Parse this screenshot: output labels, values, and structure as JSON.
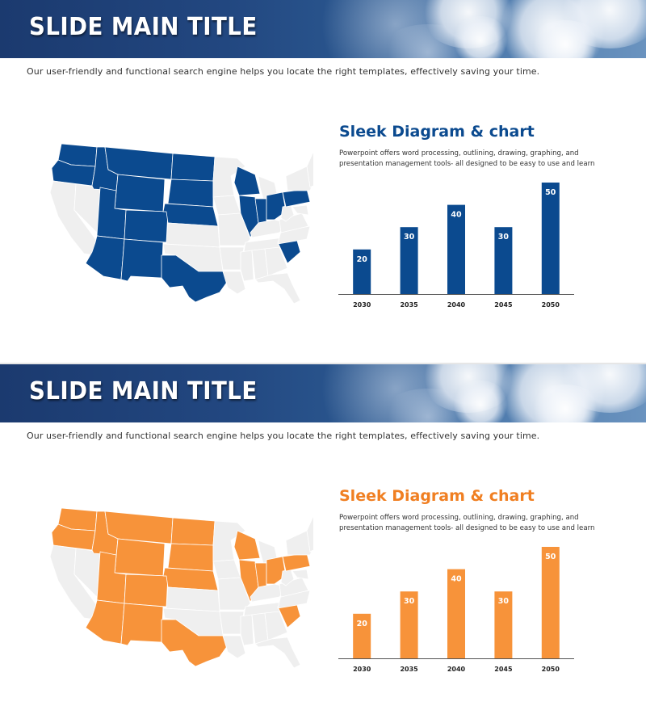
{
  "slides": [
    {
      "title": "SLIDE MAIN TITLE",
      "subtitle": "Our user-friendly and functional search engine helps you locate the right templates, effectively  saving your time.",
      "heading": "Sleek Diagram & chart",
      "body": "Powerpoint offers word processing, outlining, drawing, graphing, and presentation management tools- all designed to be easy to use and learn",
      "accent_color": "#0b4a8f",
      "map_base_color": "#efefef",
      "highlighted_states": [
        "Washington",
        "Oregon",
        "Idaho",
        "Montana",
        "Wyoming",
        "North Dakota",
        "South Dakota",
        "Nebraska",
        "Colorado",
        "Utah",
        "Arizona",
        "New Mexico",
        "Texas",
        "Wisconsin",
        "Illinois",
        "Indiana",
        "Ohio",
        "Pennsylvania",
        "South Carolina"
      ]
    },
    {
      "title": "SLIDE MAIN TITLE",
      "subtitle": "Our user-friendly and functional search engine helps you locate the right templates, effectively saving your time.",
      "heading": "Sleek Diagram & chart",
      "body": "Powerpoint offers word processing, outlining, drawing, graphing, and presentation management tools- all designed to be easy to use and learn",
      "accent_color": "#f7933a",
      "heading_color": "#f07f22",
      "map_base_color": "#efefef",
      "highlighted_states": [
        "Washington",
        "Oregon",
        "Idaho",
        "Montana",
        "Wyoming",
        "North Dakota",
        "South Dakota",
        "Nebraska",
        "Colorado",
        "Utah",
        "Arizona",
        "New Mexico",
        "Texas",
        "Wisconsin",
        "Illinois",
        "Indiana",
        "Ohio",
        "Pennsylvania",
        "South Carolina"
      ]
    }
  ],
  "chart_data": [
    {
      "type": "bar",
      "categories": [
        "2030",
        "2035",
        "2040",
        "2045",
        "2050"
      ],
      "values": [
        20,
        30,
        40,
        30,
        50
      ],
      "title": "",
      "xlabel": "",
      "ylabel": "",
      "ylim": [
        0,
        50
      ],
      "grid": false,
      "data_labels": true,
      "color": "#0b4a8f"
    },
    {
      "type": "bar",
      "categories": [
        "2030",
        "2035",
        "2040",
        "2045",
        "2050"
      ],
      "values": [
        20,
        30,
        40,
        30,
        50
      ],
      "title": "",
      "xlabel": "",
      "ylabel": "",
      "ylim": [
        0,
        50
      ],
      "grid": false,
      "data_labels": true,
      "color": "#f7933a"
    }
  ]
}
